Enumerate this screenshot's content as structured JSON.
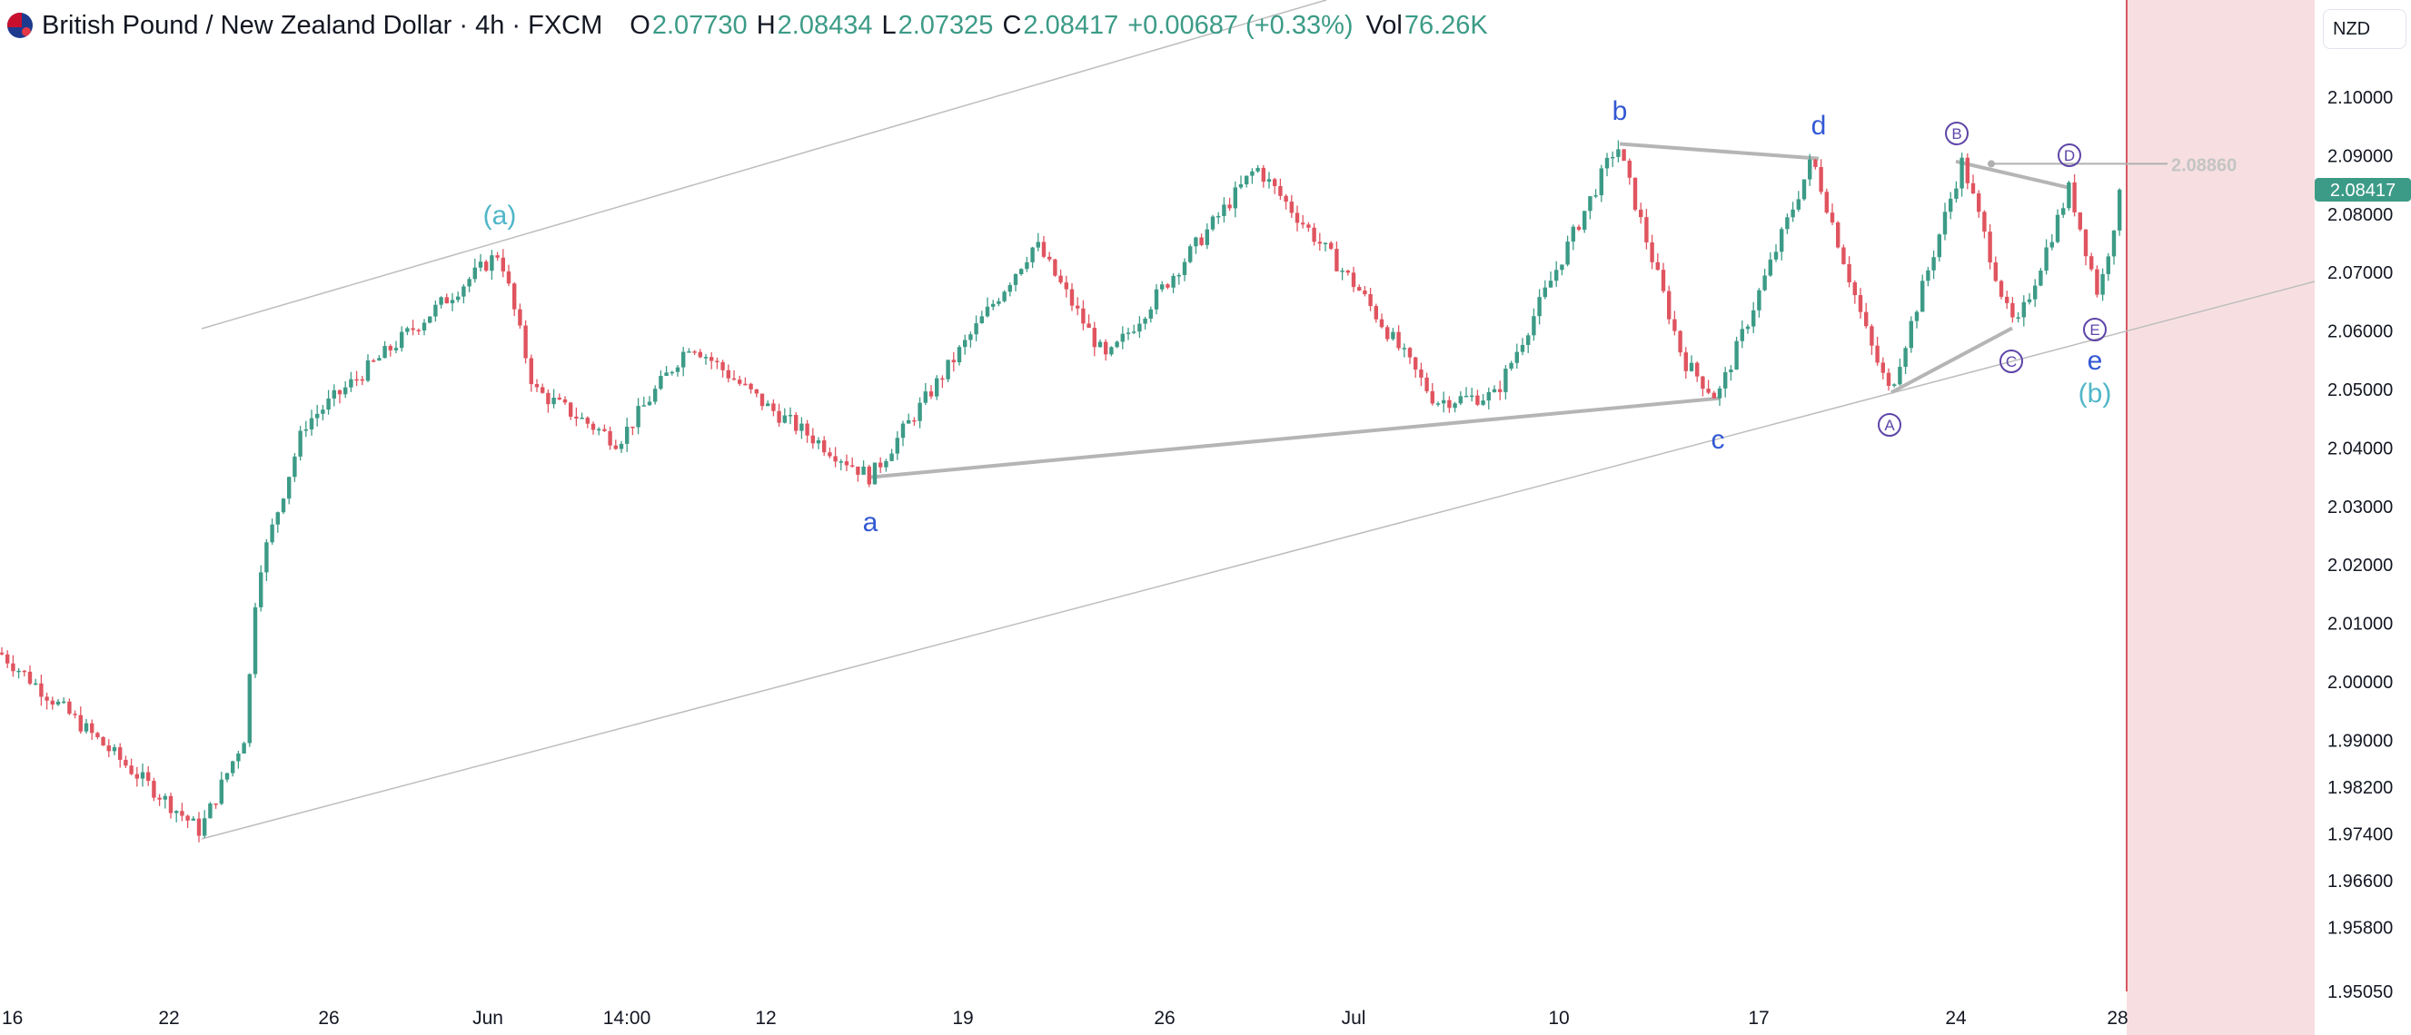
{
  "header": {
    "title": "British Pound / New Zealand Dollar · 4h · FXCM",
    "open_label": "O",
    "open": "2.07730",
    "high_label": "H",
    "high": "2.08434",
    "low_label": "L",
    "low": "2.07325",
    "close_label": "C",
    "close": "2.08417",
    "change": "+0.00687 (+0.33%)",
    "vol_label": "Vol",
    "vol": "76.26K"
  },
  "currency_button": "NZD",
  "colors": {
    "up": "#3c9b87",
    "down": "#e0545f",
    "wave_blue": "#3358d4",
    "wave_teal": "#4fb6c8",
    "wave_purple": "#5e45a8",
    "last_price": "#3c9b87"
  },
  "chart_data": {
    "type": "candlestick",
    "symbol": "GBPNZD",
    "interval": "4h",
    "x_ticks": [
      "16",
      "22",
      "26",
      "Jun",
      "14:00",
      "12",
      "19",
      "26",
      "Jul",
      "10",
      "17",
      "24",
      "28"
    ],
    "y_ticks": [
      "2.10000",
      "2.09000",
      "2.08000",
      "2.07000",
      "2.06000",
      "2.05000",
      "2.04000",
      "2.03000",
      "2.02000",
      "2.01000",
      "2.00000",
      "1.99000",
      "1.98200",
      "1.97400",
      "1.96600",
      "1.95800",
      "1.95050"
    ],
    "ylim": [
      1.9505,
      2.104
    ],
    "last_price": "2.08417",
    "horizontal_line_label": "2.08860",
    "wave_labels": [
      "(a)",
      "a",
      "b",
      "c",
      "d",
      "e",
      "(b)",
      "A",
      "B",
      "C",
      "D",
      "E"
    ],
    "pivots": {
      "start": 2.005,
      "low1": 1.9745,
      "a_paren": 2.0735,
      "mid_low": 2.041,
      "a": 2.035,
      "b": 2.092,
      "c": 2.0485,
      "d": 2.0895,
      "A": 2.0495,
      "B": 2.089,
      "C": 2.0605,
      "D": 2.0845,
      "E": 2.066,
      "end": 2.08417
    }
  }
}
